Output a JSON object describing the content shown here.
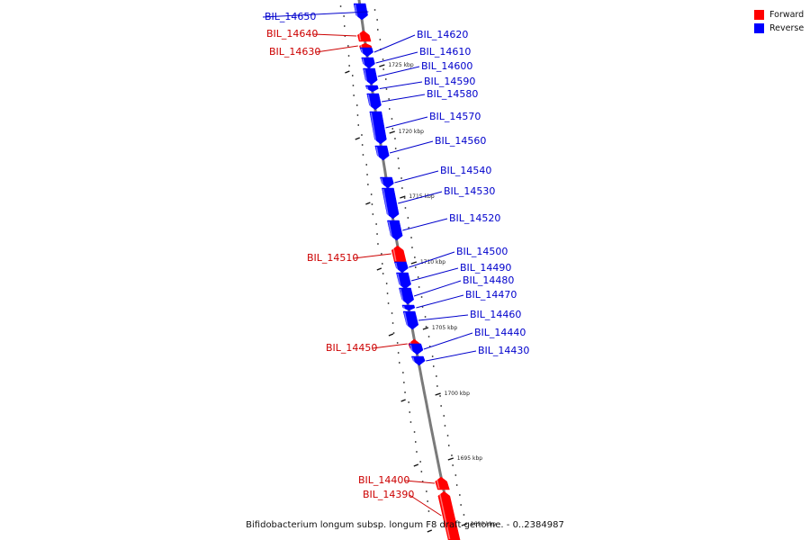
{
  "legend": {
    "forward": {
      "label": "Forward",
      "color": "#ff0000"
    },
    "reverse": {
      "label": "Reverse",
      "color": "#0000ff"
    }
  },
  "footer": {
    "caption": "Bifidobacterium longum subsp. longum F8 draft genome. - 0..2384987"
  },
  "tick_labels": [
    "1725 kbp",
    "1720 kbp",
    "1715 kbp",
    "1710 kbp",
    "1705 kbp",
    "1700 kbp",
    "1695 kbp",
    "1690 kbp"
  ],
  "genes": [
    {
      "id": "BIL_14650",
      "strand": "reverse"
    },
    {
      "id": "BIL_14640",
      "strand": "forward"
    },
    {
      "id": "BIL_14630",
      "strand": "forward"
    },
    {
      "id": "BIL_14620",
      "strand": "reverse"
    },
    {
      "id": "BIL_14610",
      "strand": "reverse"
    },
    {
      "id": "BIL_14600",
      "strand": "reverse"
    },
    {
      "id": "BIL_14590",
      "strand": "reverse"
    },
    {
      "id": "BIL_14580",
      "strand": "reverse"
    },
    {
      "id": "BIL_14570",
      "strand": "reverse"
    },
    {
      "id": "BIL_14560",
      "strand": "reverse"
    },
    {
      "id": "BIL_14540",
      "strand": "reverse"
    },
    {
      "id": "BIL_14530",
      "strand": "reverse"
    },
    {
      "id": "BIL_14520",
      "strand": "reverse"
    },
    {
      "id": "BIL_14510",
      "strand": "forward"
    },
    {
      "id": "BIL_14500",
      "strand": "reverse"
    },
    {
      "id": "BIL_14490",
      "strand": "reverse"
    },
    {
      "id": "BIL_14480",
      "strand": "reverse"
    },
    {
      "id": "BIL_14470",
      "strand": "reverse"
    },
    {
      "id": "BIL_14460",
      "strand": "reverse"
    },
    {
      "id": "BIL_14450",
      "strand": "forward"
    },
    {
      "id": "BIL_14440",
      "strand": "reverse"
    },
    {
      "id": "BIL_14430",
      "strand": "reverse"
    },
    {
      "id": "BIL_14400",
      "strand": "forward"
    },
    {
      "id": "BIL_14390",
      "strand": "forward"
    }
  ]
}
